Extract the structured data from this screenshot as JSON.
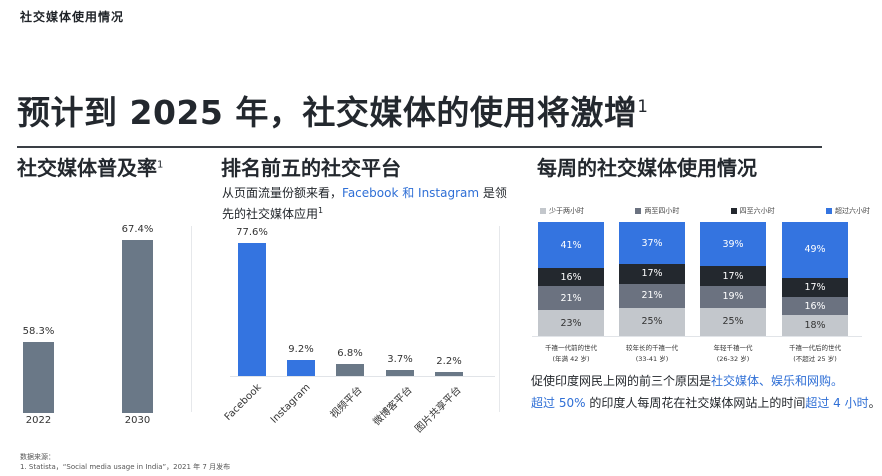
{
  "kicker": "社交媒体使用情况",
  "headline": {
    "text": "预计到 2025 年，社交媒体的使用将激增",
    "sup": "1"
  },
  "sections": {
    "penetration": {
      "title": "社交媒体普及率",
      "sup": "1"
    },
    "top5": {
      "title": "排名前五的社交平台",
      "subtitle_pre": "从页面流量份额来看，",
      "subtitle_hl": "Facebook 和 Instagram",
      "subtitle_post": " 是领先的社交媒体应用",
      "sup": "1"
    },
    "weekly": {
      "title": "每周的社交媒体使用情况"
    }
  },
  "notes": {
    "line1_pre": "促使印度网民上网的前三个原因是",
    "line1_hl": "社交媒体、娱乐和网购。",
    "line2_hl1": "超过 50%",
    "line2_mid": " 的印度人每周花在社交媒体网站上的时间",
    "line2_hl2": "超过 4 小时",
    "line2_end": "。",
    "sup": "1"
  },
  "source": {
    "label": "数据来源：",
    "line1": "1. Statista，“Social media usage in India”，2021 年 7 月发布"
  },
  "colors": {
    "accent_blue": "#3474e0",
    "slate": "#6a7887",
    "dark": "#23282e",
    "mid_gray": "#6b7280",
    "light_gray": "#c3c7cc"
  },
  "chart_data": [
    {
      "type": "bar",
      "title": "社交媒体普及率",
      "categories": [
        "2022",
        "2030"
      ],
      "values": [
        58.3,
        67.4
      ],
      "value_labels": [
        "58.3%",
        "67.4%"
      ],
      "xlabel": "",
      "ylabel": "",
      "grid": false
    },
    {
      "type": "bar",
      "title": "排名前五的社交平台",
      "categories": [
        "Facebook",
        "Instagram",
        "视频平台",
        "微博客平台",
        "图片共享平台"
      ],
      "values": [
        77.6,
        9.2,
        6.8,
        3.7,
        2.2
      ],
      "value_labels": [
        "77.6%",
        "9.2%",
        "6.8%",
        "3.7%",
        "2.2%"
      ],
      "bar_colors": [
        "#3474e0",
        "#3474e0",
        "#6a7887",
        "#6a7887",
        "#6a7887"
      ],
      "grid": false
    },
    {
      "type": "bar",
      "stacked": true,
      "title": "每周的社交媒体使用情况",
      "categories": [
        {
          "line1": "千禧一代前的世代",
          "line2": "(年满 42 岁)"
        },
        {
          "line1": "较年长的千禧一代",
          "line2": "(33-41 岁)"
        },
        {
          "line1": "年轻千禧一代",
          "line2": "(26-32 岁)"
        },
        {
          "line1": "千禧一代后的世代",
          "line2": "(不超过 25 岁)"
        }
      ],
      "series": [
        {
          "name": "少于两小时",
          "color": "#c3c7cc",
          "text_color": "#333333",
          "values": [
            23,
            25,
            25,
            18
          ]
        },
        {
          "name": "两至四小时",
          "color": "#6b7280",
          "text_color": "#ffffff",
          "values": [
            21,
            21,
            19,
            16
          ]
        },
        {
          "name": "四至六小时",
          "color": "#23282e",
          "text_color": "#ffffff",
          "values": [
            16,
            17,
            17,
            17
          ]
        },
        {
          "name": "超过六小时",
          "color": "#3474e0",
          "text_color": "#ffffff",
          "values": [
            41,
            37,
            39,
            49
          ]
        }
      ],
      "legend_position": "top"
    }
  ]
}
